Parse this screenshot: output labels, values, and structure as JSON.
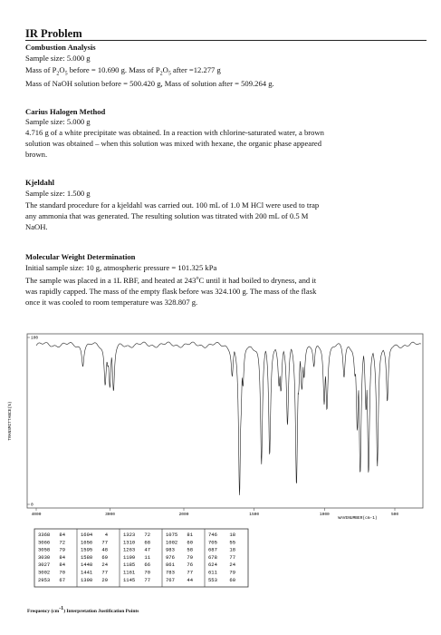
{
  "title": "IR Problem",
  "sections": [
    {
      "heading": "Combustion Analysis",
      "lines": [
        [
          "Sample size: 5.000 g"
        ],
        [
          "Mass of P",
          "2",
          "O",
          "5",
          " before = 10.690 g. Mass of P",
          "2",
          "O",
          "5",
          " after =12.277 g"
        ],
        [
          "Mass of NaOH solution before = 500.420 g, Mass of solution after = 509.264 g."
        ]
      ]
    },
    {
      "heading": "Carius Halogen Method",
      "lines": [
        [
          "Sample size: 5.000 g"
        ],
        [
          "4.716 g of a white precipitate was obtained. In a reaction with chlorine-saturated water, a brown"
        ],
        [
          "solution was obtained – when this solution was mixed with hexane, the organic phase appeared"
        ],
        [
          "brown."
        ]
      ]
    },
    {
      "heading": "Kjeldahl",
      "lines": [
        [
          "Sample size: 1.500 g"
        ],
        [
          "The standard procedure for a kjeldahl was carried out. 100 mL of 1.0 M HCl were used to trap"
        ],
        [
          "any ammonia that was generated. The resulting solution was titrated with 200 mL of 0.5 M"
        ],
        [
          "NaOH."
        ]
      ]
    },
    {
      "heading": "Molecular Weight Determination",
      "lines": [
        [
          "Initial sample size: 10 g, atmospheric pressure = 101.325 kPa"
        ],
        [
          "The sample was placed in a 1L RBF, and heated at 243",
          "o",
          "C until it had boiled to dryness, and it"
        ],
        [
          "was rapidly capped. The mass of the empty flask before was 324.100 g. The mass of the flask"
        ],
        [
          "once it was cooled to room temperature was 328.807 g."
        ]
      ]
    }
  ],
  "spectrum": {
    "ylabel": "TRANSMITTANCE(%)",
    "xlabel": "WAVENUMBER(cm-1)",
    "yticks": [
      100,
      0
    ],
    "xticks": [
      4000,
      3000,
      2000,
      1500,
      1000,
      500
    ]
  },
  "peak_table": {
    "columns": [
      [
        [
          3368,
          84
        ],
        [
          3066,
          72
        ],
        [
          3058,
          79
        ],
        [
          3030,
          84
        ],
        [
          3027,
          84
        ],
        [
          3002,
          70
        ],
        [
          2953,
          67
        ]
      ],
      [
        [
          1604,
          4
        ],
        [
          1656,
          77
        ],
        [
          1595,
          48
        ],
        [
          1580,
          69
        ],
        [
          1448,
          24
        ],
        [
          1441,
          77
        ],
        [
          1390,
          29
        ]
      ],
      [
        [
          1323,
          72
        ],
        [
          1310,
          68
        ],
        [
          1263,
          47
        ],
        [
          1199,
          11
        ],
        [
          1185,
          66
        ],
        [
          1161,
          70
        ],
        [
          1145,
          77
        ]
      ],
      [
        [
          1075,
          81
        ],
        [
          1002,
          60
        ],
        [
          983,
          58
        ],
        [
          976,
          79
        ],
        [
          861,
          76
        ],
        [
          783,
          77
        ],
        [
          767,
          44
        ]
      ],
      [
        [
          746,
          18
        ],
        [
          705,
          55
        ],
        [
          687,
          18
        ],
        [
          678,
          77
        ],
        [
          624,
          24
        ],
        [
          611,
          79
        ],
        [
          553,
          60
        ]
      ]
    ]
  },
  "caption": [
    "Frequency (cm",
    "-1",
    ") Interpretation Justification Points"
  ]
}
